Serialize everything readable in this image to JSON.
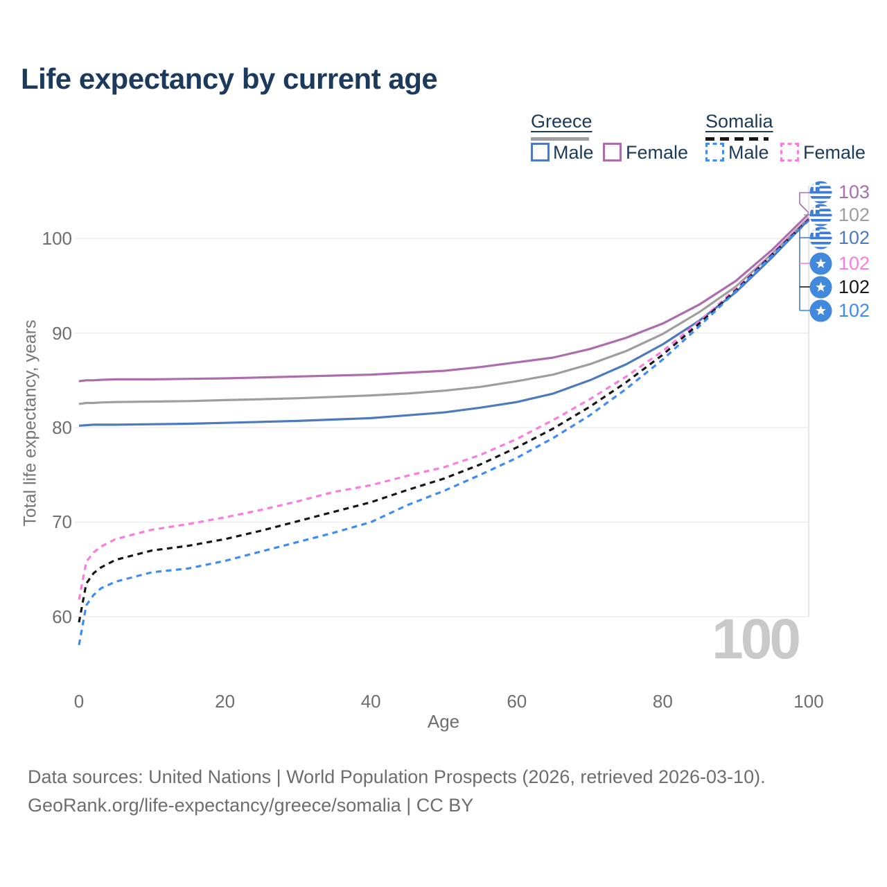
{
  "title": "Life expectancy by current age",
  "watermark": "100",
  "colors": {
    "title_navy": "#1c3a5c",
    "greece_male": "#4d79bd",
    "greece_female": "#ad6cae",
    "greece_both": "#9e9e9e",
    "somalia_male": "#3d8bf5",
    "somalia_female": "#fb7ce0",
    "somalia_both": "#171717",
    "gridline": "#e9e9e9",
    "age_cursor_line": "#d9d9d9",
    "watermark_gray": "#c9c9c9",
    "tick_text": "#6e6e6e",
    "greek_flag_blue": "#3a7cd9",
    "somali_flag_blue": "#4189dd"
  },
  "legend": {
    "greece": {
      "country": "Greece",
      "male": "Male",
      "female": "Female"
    },
    "somalia": {
      "country": "Somalia",
      "male": "Male",
      "female": "Female"
    }
  },
  "chart_data": {
    "type": "line",
    "title": "Life expectancy by current age",
    "xlabel": "Age",
    "ylabel": "Total life expectancy, years",
    "x_ticks": [
      0,
      20,
      40,
      60,
      80,
      100
    ],
    "y_ticks": [
      60,
      70,
      80,
      90,
      100
    ],
    "xlim": [
      0,
      100
    ],
    "ylim": [
      56,
      105
    ],
    "grid": "horizontal",
    "legend_position": "top-right",
    "age_cursor": 100,
    "ages": [
      0,
      1,
      2,
      3,
      5,
      10,
      15,
      20,
      25,
      30,
      35,
      40,
      45,
      50,
      55,
      60,
      65,
      70,
      75,
      80,
      85,
      90,
      95,
      100
    ],
    "series": [
      {
        "id": "greece-both",
        "name": "Greece Both sexes",
        "color": "#9e9e9e",
        "dash": false,
        "end_label": "102",
        "values": [
          82.5,
          82.6,
          82.6,
          82.65,
          82.7,
          82.75,
          82.8,
          82.9,
          83.0,
          83.1,
          83.25,
          83.4,
          83.6,
          83.9,
          84.3,
          84.9,
          85.6,
          86.7,
          88.1,
          89.9,
          92.2,
          94.9,
          98.4,
          102.2
        ]
      },
      {
        "id": "greece-female",
        "name": "Greece Female",
        "color": "#ad6cae",
        "dash": false,
        "end_label": "103",
        "values": [
          84.9,
          85.0,
          85.0,
          85.05,
          85.1,
          85.1,
          85.15,
          85.2,
          85.3,
          85.4,
          85.5,
          85.6,
          85.8,
          86.0,
          86.4,
          86.9,
          87.4,
          88.3,
          89.5,
          91.0,
          93.0,
          95.5,
          98.8,
          102.6
        ]
      },
      {
        "id": "greece-male",
        "name": "Greece Male",
        "color": "#4d79bd",
        "dash": false,
        "end_label": "102",
        "values": [
          80.2,
          80.25,
          80.3,
          80.3,
          80.3,
          80.35,
          80.4,
          80.5,
          80.6,
          80.7,
          80.85,
          81.0,
          81.3,
          81.6,
          82.1,
          82.7,
          83.6,
          85.0,
          86.7,
          88.8,
          91.3,
          94.3,
          98.0,
          102.0
        ]
      },
      {
        "id": "somalia-female",
        "name": "Somalia Female",
        "color": "#fb7ce0",
        "dash": true,
        "end_label": "102",
        "values": [
          61.8,
          65.8,
          66.8,
          67.4,
          68.2,
          69.2,
          69.8,
          70.5,
          71.3,
          72.2,
          73.2,
          73.9,
          74.9,
          75.8,
          77.1,
          78.8,
          80.8,
          83.0,
          85.4,
          88.1,
          91.2,
          94.7,
          98.4,
          102.1
        ]
      },
      {
        "id": "somalia-both",
        "name": "Somalia Both sexes",
        "color": "#171717",
        "dash": true,
        "end_label": "102",
        "values": [
          59.4,
          63.5,
          64.6,
          65.2,
          66.0,
          67.0,
          67.5,
          68.2,
          69.1,
          70.1,
          71.1,
          72.1,
          73.4,
          74.6,
          76.1,
          77.9,
          79.9,
          82.2,
          84.8,
          87.7,
          91.0,
          94.5,
          98.3,
          102.0
        ]
      },
      {
        "id": "somalia-male",
        "name": "Somalia Male",
        "color": "#3d8bf5",
        "dash": true,
        "end_label": "102",
        "values": [
          57.0,
          61.2,
          62.3,
          63.0,
          63.7,
          64.7,
          65.1,
          65.9,
          66.9,
          67.9,
          68.9,
          70.0,
          71.8,
          73.3,
          75.0,
          76.8,
          78.9,
          81.3,
          84.1,
          87.2,
          90.7,
          94.4,
          98.2,
          101.9
        ]
      }
    ],
    "end_label_order": [
      "greece-female",
      "greece-both",
      "greece-male",
      "somalia-female",
      "somalia-both",
      "somalia-male"
    ],
    "end_label_flags": {
      "greece-female": "greece",
      "greece-both": "greece",
      "greece-male": "greece",
      "somalia-female": "somalia",
      "somalia-both": "somalia",
      "somalia-male": "somalia"
    }
  },
  "footer": {
    "line1": "Data sources: United Nations | World Population Prospects (2026, retrieved 2026-03-10).",
    "line2": "GeoRank.org/life-expectancy/greece/somalia | CC BY"
  }
}
